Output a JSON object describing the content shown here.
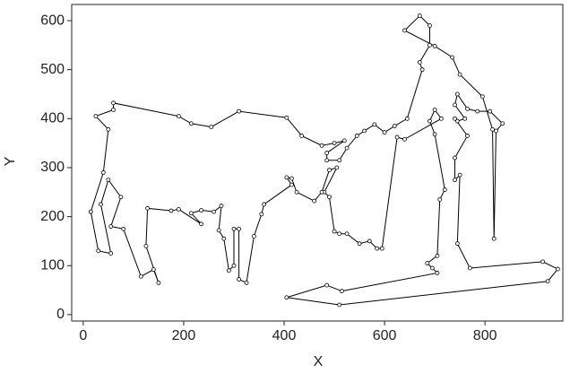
{
  "chart_data": {
    "type": "line",
    "x_label": "X",
    "y_label": "Y",
    "x": [
      15,
      40,
      50,
      25,
      60,
      60,
      190,
      215,
      255,
      310,
      405,
      435,
      475,
      500,
      520,
      485,
      485,
      510,
      525,
      545,
      560,
      580,
      600,
      620,
      645,
      675,
      670,
      690,
      690,
      670,
      640,
      700,
      735,
      750,
      795,
      815,
      818,
      822,
      835,
      810,
      785,
      765,
      745,
      740,
      760,
      745,
      740,
      765,
      740,
      740,
      750,
      745,
      770,
      915,
      945,
      925,
      510,
      405,
      485,
      515,
      705,
      695,
      685,
      705,
      710,
      720,
      700,
      690,
      700,
      713,
      640,
      625,
      595,
      585,
      570,
      550,
      525,
      510,
      500,
      490,
      480,
      505,
      490,
      475,
      460,
      425,
      415,
      405,
      415,
      360,
      355,
      340,
      325,
      310,
      310,
      300,
      300,
      290,
      280,
      270,
      275,
      260,
      235,
      215,
      235,
      190,
      175,
      128,
      125,
      150,
      140,
      115,
      80,
      55,
      75,
      50,
      35,
      55,
      30,
      15
    ],
    "series": [
      {
        "name": "Y",
        "color": "#000000",
        "values": [
          210,
          290,
          378,
          405,
          418,
          432,
          405,
          390,
          383,
          415,
          402,
          365,
          345,
          350,
          355,
          330,
          315,
          315,
          340,
          365,
          375,
          388,
          372,
          385,
          400,
          500,
          515,
          550,
          590,
          610,
          580,
          548,
          525,
          490,
          445,
          378,
          155,
          375,
          390,
          415,
          415,
          420,
          450,
          428,
          400,
          395,
          400,
          365,
          320,
          275,
          285,
          145,
          95,
          108,
          93,
          68,
          20,
          35,
          60,
          48,
          85,
          95,
          105,
          120,
          235,
          255,
          368,
          395,
          418,
          400,
          358,
          362,
          135,
          135,
          150,
          145,
          165,
          165,
          170,
          240,
          250,
          300,
          295,
          250,
          232,
          250,
          278,
          280,
          265,
          225,
          205,
          160,
          65,
          72,
          175,
          175,
          100,
          90,
          155,
          172,
          222,
          210,
          213,
          207,
          185,
          215,
          212,
          217,
          140,
          65,
          92,
          78,
          175,
          180,
          240,
          275,
          225,
          125,
          130,
          210
        ]
      }
    ],
    "xlim": [
      -23,
      955
    ],
    "ylim": [
      -13,
      633
    ],
    "xticks": [
      0,
      200,
      400,
      600,
      800
    ],
    "yticks": [
      0,
      100,
      200,
      300,
      400,
      500,
      600
    ]
  }
}
